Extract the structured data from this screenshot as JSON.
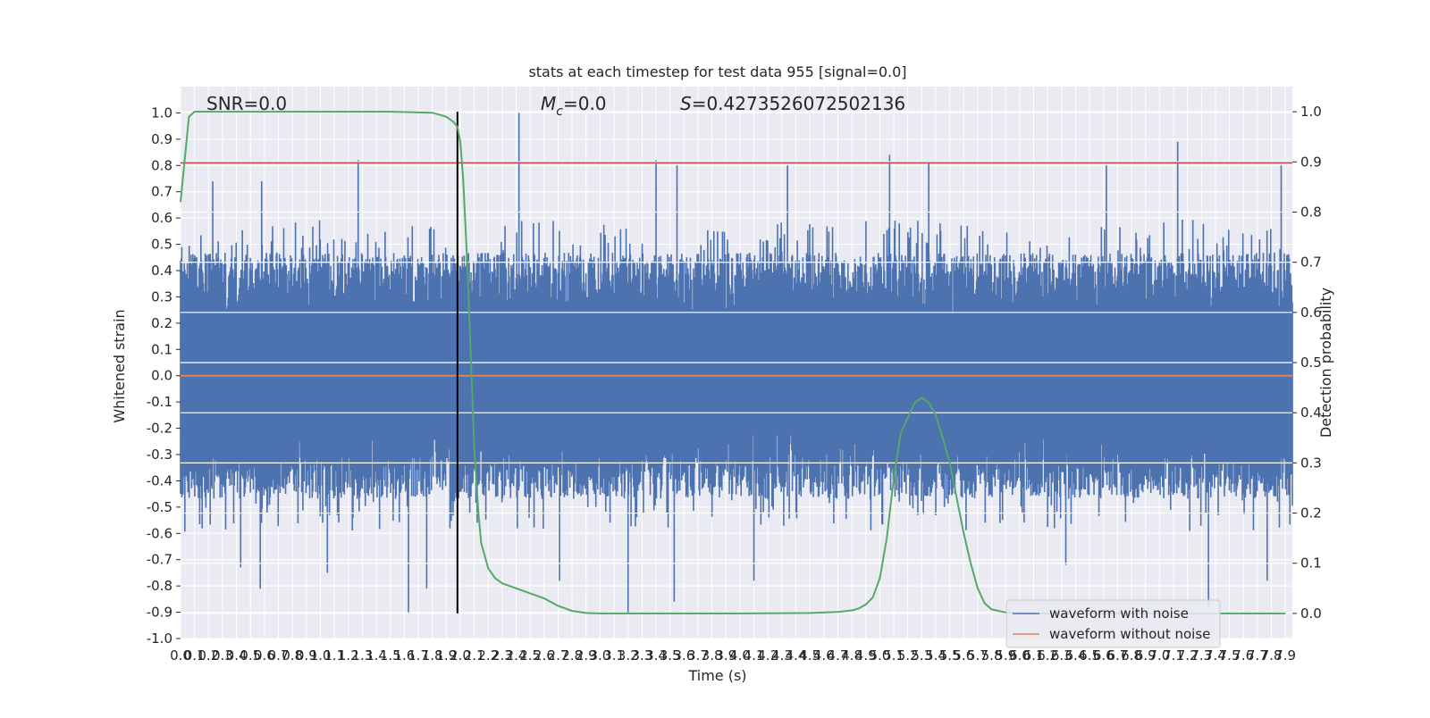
{
  "chart_data": {
    "type": "line",
    "title": "stats at each timestep for test data 955 [signal=0.0]",
    "xlabel": "Time (s)",
    "ylabel": "Whitened strain",
    "y2label": "Detection probability",
    "xlim": [
      0.0,
      7.95
    ],
    "ylim": [
      -1.0,
      1.1
    ],
    "y2lim": [
      -0.05,
      1.05
    ],
    "x_ticks": [
      "0.0",
      "0.1",
      "0.2",
      "0.3",
      "0.4",
      "0.5",
      "0.6",
      "0.7",
      "0.8",
      "0.9",
      "1.0",
      "1.1",
      "1.2",
      "1.3",
      "1.4",
      "1.5",
      "1.6",
      "1.7",
      "1.8",
      "1.9",
      "2.0",
      "2.1",
      "2.2",
      "2.3",
      "2.4",
      "2.5",
      "2.6",
      "2.7",
      "2.8",
      "2.9",
      "3.0",
      "3.1",
      "3.2",
      "3.3",
      "3.4",
      "3.5",
      "3.6",
      "3.7",
      "3.8",
      "3.9",
      "4.0",
      "4.1",
      "4.2",
      "4.3",
      "4.4",
      "4.5",
      "4.6",
      "4.7",
      "4.8",
      "4.9",
      "5.0",
      "5.1",
      "5.2",
      "5.3",
      "5.4",
      "5.5",
      "5.6",
      "5.7",
      "5.8",
      "5.9",
      "6.0",
      "6.1",
      "6.2",
      "6.3",
      "6.4",
      "6.5",
      "6.6",
      "6.7",
      "6.8",
      "6.9",
      "7.0",
      "7.1",
      "7.2",
      "7.3",
      "7.4",
      "7.5",
      "7.6",
      "7.7",
      "7.8",
      "7.9"
    ],
    "y_ticks": [
      "-1.0",
      "-0.9",
      "-0.8",
      "-0.7",
      "-0.6",
      "-0.5",
      "-0.4",
      "-0.3",
      "-0.2",
      "-0.1",
      "0.0",
      "0.1",
      "0.2",
      "0.3",
      "0.4",
      "0.5",
      "0.6",
      "0.7",
      "0.8",
      "0.9",
      "1.0"
    ],
    "y2_ticks": [
      "0.0",
      "0.1",
      "0.2",
      "0.3",
      "0.4",
      "0.5",
      "0.6",
      "0.7",
      "0.8",
      "0.9",
      "1.0"
    ],
    "grid": true,
    "legend_position": "lower-right",
    "series": [
      {
        "name": "waveform with noise",
        "color": "#4c72b0",
        "kind": "noise",
        "band_low": -0.48,
        "band_high": 0.48,
        "peak_points": [
          {
            "x": 0.23,
            "y": 0.74
          },
          {
            "x": 0.43,
            "y": -0.73
          },
          {
            "x": 0.57,
            "y": -0.81
          },
          {
            "x": 0.58,
            "y": 0.74
          },
          {
            "x": 1.05,
            "y": -0.75
          },
          {
            "x": 1.27,
            "y": 0.82
          },
          {
            "x": 1.63,
            "y": -0.9
          },
          {
            "x": 1.76,
            "y": -0.81
          },
          {
            "x": 2.42,
            "y": 1.0
          },
          {
            "x": 2.71,
            "y": -0.78
          },
          {
            "x": 3.2,
            "y": -0.9
          },
          {
            "x": 3.4,
            "y": 0.82
          },
          {
            "x": 3.55,
            "y": 0.8
          },
          {
            "x": 3.53,
            "y": -0.86
          },
          {
            "x": 4.1,
            "y": -0.78
          },
          {
            "x": 4.34,
            "y": 0.8
          },
          {
            "x": 5.07,
            "y": 0.84
          },
          {
            "x": 5.35,
            "y": 0.81
          },
          {
            "x": 6.33,
            "y": -0.72
          },
          {
            "x": 6.62,
            "y": 0.8
          },
          {
            "x": 7.13,
            "y": 0.89
          },
          {
            "x": 7.35,
            "y": -0.88
          },
          {
            "x": 7.77,
            "y": -0.78
          },
          {
            "x": 7.87,
            "y": 0.8
          }
        ]
      },
      {
        "name": "waveform without noise",
        "color": "#dd8452",
        "kind": "line",
        "x": [
          0.0,
          7.95
        ],
        "y": [
          0.0,
          0.0
        ]
      },
      {
        "name": "",
        "color": "#55a868",
        "axis": "right",
        "kind": "line",
        "x": [
          0.0,
          0.06,
          0.1,
          0.2,
          0.5,
          1.0,
          1.5,
          1.8,
          1.9,
          1.95,
          1.98,
          2.0,
          2.02,
          2.05,
          2.08,
          2.1,
          2.13,
          2.15,
          2.2,
          2.25,
          2.3,
          2.4,
          2.5,
          2.6,
          2.7,
          2.8,
          2.9,
          3.0,
          3.2,
          3.5,
          4.0,
          4.5,
          4.7,
          4.8,
          4.85,
          4.9,
          4.95,
          5.0,
          5.05,
          5.1,
          5.15,
          5.2,
          5.25,
          5.3,
          5.35,
          5.4,
          5.45,
          5.5,
          5.55,
          5.6,
          5.65,
          5.7,
          5.75,
          5.8,
          5.9,
          6.0,
          6.2,
          6.5,
          7.0,
          7.9
        ],
        "y": [
          0.82,
          0.99,
          1.0,
          1.0,
          1.0,
          1.0,
          1.0,
          0.998,
          0.99,
          0.98,
          0.97,
          0.94,
          0.87,
          0.7,
          0.48,
          0.33,
          0.2,
          0.14,
          0.09,
          0.07,
          0.06,
          0.05,
          0.04,
          0.03,
          0.015,
          0.005,
          0.001,
          0.0,
          0.0,
          0.0,
          0.0,
          0.001,
          0.003,
          0.006,
          0.01,
          0.018,
          0.032,
          0.07,
          0.15,
          0.27,
          0.36,
          0.39,
          0.42,
          0.43,
          0.42,
          0.395,
          0.35,
          0.3,
          0.23,
          0.16,
          0.1,
          0.05,
          0.02,
          0.008,
          0.002,
          0.0,
          0.0,
          0.0,
          0.0,
          0.0
        ]
      },
      {
        "name": "",
        "color": "#c44e52",
        "kind": "hline",
        "y": 0.81
      },
      {
        "name": "",
        "color": "#000000",
        "kind": "vline",
        "x": 1.98
      }
    ],
    "annotations": [
      {
        "text": "SNR=0.0",
        "kind": "plain"
      },
      {
        "text_main": "M",
        "text_sub": "c",
        "text_rest": "=0.0",
        "kind": "mc"
      },
      {
        "text_main": "S",
        "text_rest": "=0.4273526072502136",
        "kind": "s"
      }
    ]
  }
}
